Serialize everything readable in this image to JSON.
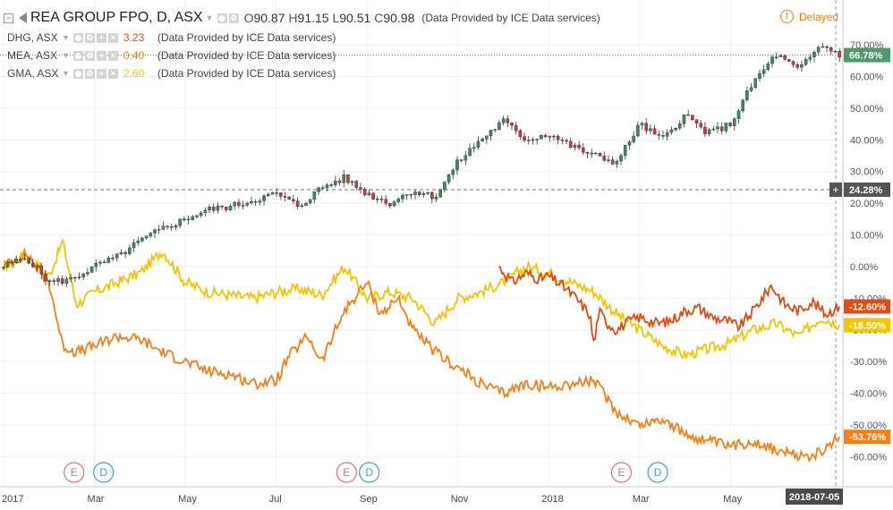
{
  "header": {
    "main_symbol": "REA GROUP FPO, D, ASX",
    "ohlc": {
      "o_label": "O",
      "o": "90.87",
      "h_label": "H",
      "h": "91.15",
      "l_label": "L",
      "l": "90.51",
      "c_label": "C",
      "c": "90.98"
    },
    "source": "(Data Provided by ICE Data services)",
    "delayed": "Delayed",
    "delayed_icon": "!"
  },
  "comparisons": [
    {
      "symbol": "DHG, ASX",
      "value": "3.23",
      "source": "(Data Provided by ICE Data services)",
      "color": "#e65100"
    },
    {
      "symbol": "MEA, ASX",
      "value": "0.40",
      "source": "(Data Provided by ICE Data services)",
      "color": "#f57f17"
    },
    {
      "symbol": "GMA, ASX",
      "value": "2.60",
      "source": "(Data Provided by ICE Data services)",
      "color": "#f2c500"
    }
  ],
  "chart_data": {
    "type": "line",
    "x_axis_labels": [
      "2017",
      "Mar",
      "May",
      "Jul",
      "Sep",
      "Nov",
      "2018",
      "Mar",
      "May"
    ],
    "x_current_label": "2018-07-05",
    "y_axis_labels": [
      "70.00%",
      "60.00%",
      "50.00%",
      "40.00%",
      "30.00%",
      "20.00%",
      "10.00%",
      "0.00%",
      "-10.00%",
      "-20.00%",
      "-30.00%",
      "-40.00%",
      "-50.00%",
      "-60.00%"
    ],
    "ylim": [
      -65,
      74
    ],
    "xlim": [
      0,
      18.2
    ],
    "grid": true,
    "y_unit": "%",
    "price_tags": [
      {
        "label": "66.78%",
        "value": 66.78,
        "color": "#4a9a6c"
      },
      {
        "label": "24.28%",
        "value": 24.28,
        "color": "#555555",
        "crosshair": true
      },
      {
        "label": "-12.60%",
        "value": -12.6,
        "color": "#e04a14"
      },
      {
        "label": "-18.50%",
        "value": -18.5,
        "color": "#f2c500"
      },
      {
        "label": "-53.76%",
        "value": -53.76,
        "color": "#f57f17"
      }
    ],
    "crosshair_plus": "+",
    "markers": [
      {
        "type": "earnings",
        "label": "E",
        "x": 1.55,
        "color": "#e07070"
      },
      {
        "type": "dividend",
        "label": "D",
        "x": 2.2,
        "color": "#3ba0d8"
      },
      {
        "type": "earnings",
        "label": "E",
        "x": 7.55,
        "color": "#e07070"
      },
      {
        "type": "dividend",
        "label": "D",
        "x": 8.05,
        "color": "#3ba0d8"
      },
      {
        "type": "earnings",
        "label": "E",
        "x": 13.6,
        "color": "#e07070"
      },
      {
        "type": "dividend",
        "label": "D",
        "x": 14.4,
        "color": "#3ba0d8"
      }
    ],
    "main_series": {
      "name": "REA GROUP FPO",
      "kind": "candlestick",
      "up_color": "#3c8c5c",
      "down_color": "#c43c3c",
      "points": [
        [
          0,
          0
        ],
        [
          0.5,
          3
        ],
        [
          1,
          -5
        ],
        [
          1.5,
          -4
        ],
        [
          2,
          0
        ],
        [
          2.5,
          3
        ],
        [
          3,
          8
        ],
        [
          3.5,
          12
        ],
        [
          4,
          15
        ],
        [
          4.5,
          18
        ],
        [
          5,
          19
        ],
        [
          5.5,
          21
        ],
        [
          6,
          23
        ],
        [
          6.5,
          19
        ],
        [
          7,
          25
        ],
        [
          7.5,
          28
        ],
        [
          8,
          23
        ],
        [
          8.5,
          20
        ],
        [
          9,
          24
        ],
        [
          9.5,
          22
        ],
        [
          10,
          33
        ],
        [
          10.5,
          40
        ],
        [
          11,
          46
        ],
        [
          11.5,
          40
        ],
        [
          12,
          42
        ],
        [
          12.5,
          38
        ],
        [
          13,
          35
        ],
        [
          13.5,
          33
        ],
        [
          14,
          45
        ],
        [
          14.5,
          40
        ],
        [
          15,
          48
        ],
        [
          15.5,
          42
        ],
        [
          16,
          45
        ],
        [
          16.5,
          58
        ],
        [
          17,
          67
        ],
        [
          17.5,
          62
        ],
        [
          18,
          70
        ],
        [
          18.4,
          67
        ]
      ]
    },
    "series": [
      {
        "name": "DHG",
        "color": "#e04a14",
        "x": [
          10.9,
          11.2,
          11.5,
          11.8,
          12.0,
          12.3,
          12.6,
          12.9,
          13.0,
          13.1,
          13.3,
          13.5,
          13.8,
          14.0,
          14.4,
          14.7,
          15.0,
          15.3,
          15.6,
          15.9,
          16.2,
          16.5,
          16.9,
          17.2,
          17.5,
          17.8,
          18.1,
          18.4
        ],
        "values": [
          0,
          -5,
          -2,
          -4,
          -3,
          -6,
          -10,
          -15,
          -25,
          -14,
          -18,
          -20,
          -17,
          -16,
          -18,
          -17,
          -14,
          -13,
          -16,
          -17,
          -19,
          -14,
          -6,
          -12,
          -14,
          -11,
          -15,
          -12.6
        ]
      },
      {
        "name": "MEA",
        "color": "#f57f17",
        "x": [
          0,
          0.5,
          1,
          1.3,
          1.6,
          2,
          2.5,
          3,
          3.5,
          4,
          4.5,
          5,
          5.5,
          6,
          6.3,
          6.7,
          7,
          7.5,
          8,
          8.3,
          8.7,
          9,
          9.5,
          10,
          10.5,
          11,
          11.5,
          12,
          12.5,
          13,
          13.5,
          14,
          14.5,
          15,
          15.5,
          16,
          16.5,
          17,
          17.5,
          18,
          18.4
        ],
        "values": [
          0,
          4,
          -5,
          -25,
          -27,
          -25,
          -22,
          -23,
          -27,
          -30,
          -33,
          -34,
          -37,
          -36,
          -28,
          -22,
          -30,
          -14,
          -5,
          -15,
          -10,
          -20,
          -27,
          -32,
          -37,
          -40,
          -37,
          -38,
          -37,
          -36,
          -46,
          -50,
          -48,
          -53,
          -55,
          -57,
          -55,
          -58,
          -60,
          -59,
          -53.76
        ]
      },
      {
        "name": "GMA",
        "color": "#f2c500",
        "x": [
          0,
          0.5,
          1,
          1.3,
          1.6,
          2,
          2.5,
          3,
          3.5,
          4,
          4.5,
          5,
          5.5,
          6,
          6.5,
          7,
          7.5,
          8,
          8.5,
          9,
          9.5,
          10,
          10.5,
          11,
          11.5,
          12,
          12.5,
          13,
          13.5,
          14,
          14.5,
          15,
          15.5,
          16,
          16.5,
          17,
          17.5,
          18,
          18.4
        ],
        "values": [
          0,
          4,
          -3,
          8,
          -12,
          -8,
          -5,
          -2,
          5,
          -5,
          -8,
          -9,
          -10,
          -8,
          -7,
          -9,
          0,
          -10,
          -8,
          -10,
          -18,
          -10,
          -8,
          -5,
          0,
          -2,
          -5,
          -8,
          -15,
          -20,
          -25,
          -28,
          -26,
          -24,
          -20,
          -18,
          -22,
          -16,
          -18.5
        ]
      }
    ]
  }
}
